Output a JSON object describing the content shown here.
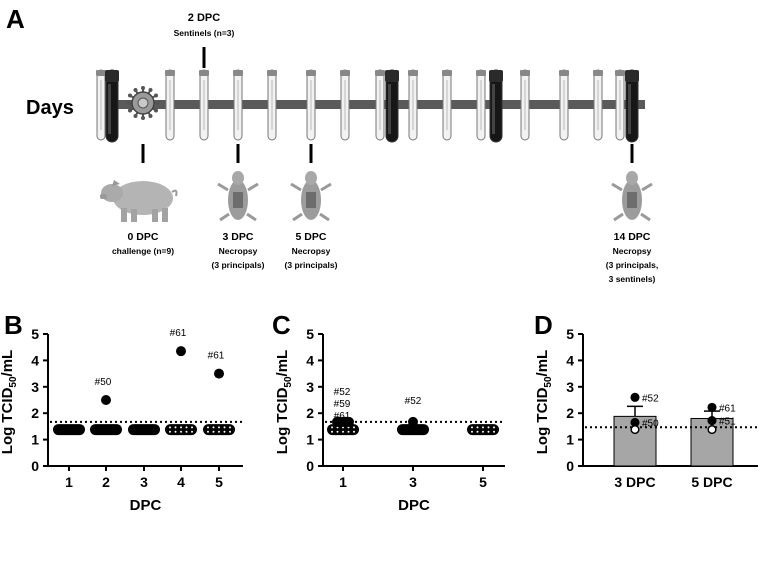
{
  "timeline": {
    "panel_letter": "A",
    "days_label": "Days",
    "sentinel_title": "2 DPC",
    "sentinel_sub": "Sentinels (n=3)",
    "challenge_title": "0 DPC",
    "challenge_sub": "challenge (n=9)",
    "necropsy3_title": "3 DPC",
    "necropsy3_sub1": "Necropsy",
    "necropsy3_sub2": "(3 principals)",
    "necropsy5_title": "5 DPC",
    "necropsy5_sub1": "Necropsy",
    "necropsy5_sub2": "(3 principals)",
    "necropsy14_title": "14 DPC",
    "necropsy14_sub1": "Necropsy",
    "necropsy14_sub2": "(3 principals,",
    "necropsy14_sub3": "3 sentinels)",
    "colors": {
      "bar": "#5a5a5a",
      "blood": "#161616",
      "tube_fill": "#f2f2f2"
    }
  },
  "chart_data": [
    {
      "panel": "B",
      "type": "scatter",
      "xlabel": "DPC",
      "ylabel": "Log TCID50/mL",
      "ylim": [
        0,
        5
      ],
      "yticks": [
        "0",
        "1",
        "2",
        "3",
        "4",
        "5"
      ],
      "categories": [
        "1",
        "2",
        "3",
        "4",
        "5"
      ],
      "detection_limit": 1.67,
      "below_limit_value": 1.38,
      "points": [
        {
          "x": "2",
          "y": 2.5,
          "label": "#50"
        },
        {
          "x": "4",
          "y": 4.35,
          "label": "#61"
        },
        {
          "x": "5",
          "y": 3.5,
          "label": "#61"
        }
      ],
      "below_limit_style": [
        "filled",
        "filled",
        "filled",
        "open",
        "open"
      ]
    },
    {
      "panel": "C",
      "type": "scatter",
      "xlabel": "DPC",
      "ylabel": "Log TCID50/mL",
      "ylim": [
        0,
        5
      ],
      "yticks": [
        "0",
        "1",
        "2",
        "3",
        "4",
        "5"
      ],
      "categories": [
        "1",
        "3",
        "5"
      ],
      "detection_limit": 1.67,
      "below_limit_value": 1.38,
      "points": [
        {
          "x": "1",
          "y": 1.67,
          "label": "#52 #59 #61"
        },
        {
          "x": "3",
          "y": 1.67,
          "label": "#52"
        }
      ],
      "point_labels": {
        "group1": [
          "#52",
          "#59",
          "#61"
        ],
        "group3": [
          "#52"
        ]
      },
      "below_limit_style": [
        "open",
        "filled",
        "open"
      ]
    },
    {
      "panel": "D",
      "type": "bar",
      "ylabel": "Log TCID50/mL",
      "ylim": [
        0,
        5
      ],
      "yticks": [
        "0",
        "1",
        "2",
        "3",
        "4",
        "5"
      ],
      "categories": [
        "3 DPC",
        "5 DPC"
      ],
      "values": [
        1.88,
        1.8
      ],
      "errors": [
        0.38,
        0.28
      ],
      "detection_limit": 1.47,
      "bar_color": "#a6a6a6",
      "points": [
        {
          "x": "3 DPC",
          "y": 2.6,
          "label": "#52",
          "filled": true
        },
        {
          "x": "3 DPC",
          "y": 1.65,
          "label": "#50",
          "filled": true
        },
        {
          "x": "3 DPC",
          "y": 1.38,
          "label": "",
          "filled": false
        },
        {
          "x": "5 DPC",
          "y": 2.22,
          "label": "#61",
          "filled": true
        },
        {
          "x": "5 DPC",
          "y": 1.72,
          "label": "#51",
          "filled": true
        },
        {
          "x": "5 DPC",
          "y": 1.38,
          "label": "",
          "filled": false
        }
      ]
    }
  ]
}
